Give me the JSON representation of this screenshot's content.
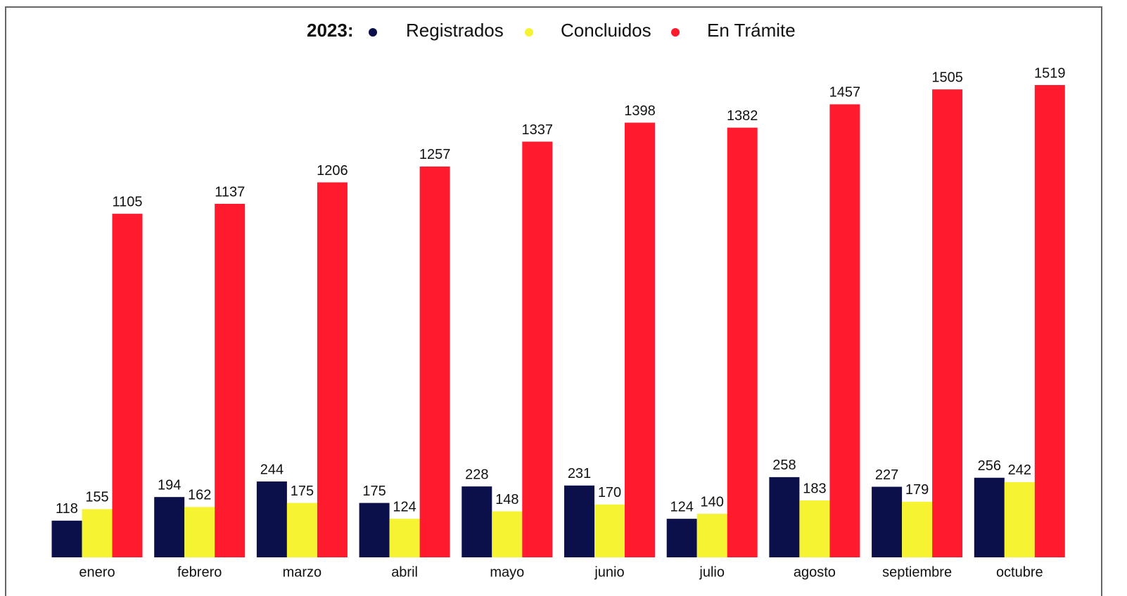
{
  "chart_data": {
    "type": "bar",
    "legend_title": "2023:",
    "categories": [
      "enero",
      "febrero",
      "marzo",
      "abril",
      "mayo",
      "junio",
      "julio",
      "agosto",
      "septiembre",
      "octubre"
    ],
    "series": [
      {
        "name": "Registrados",
        "color": "#0b0f4a",
        "values": [
          118,
          194,
          244,
          175,
          228,
          231,
          124,
          258,
          227,
          256
        ]
      },
      {
        "name": "Concluidos",
        "color": "#f5f332",
        "values": [
          155,
          162,
          175,
          124,
          148,
          170,
          140,
          183,
          179,
          242
        ]
      },
      {
        "name": "En Trámite",
        "color": "#ff1a2e",
        "values": [
          1105,
          1137,
          1206,
          1257,
          1337,
          1398,
          1382,
          1457,
          1505,
          1519
        ]
      }
    ],
    "legend": "top"
  }
}
